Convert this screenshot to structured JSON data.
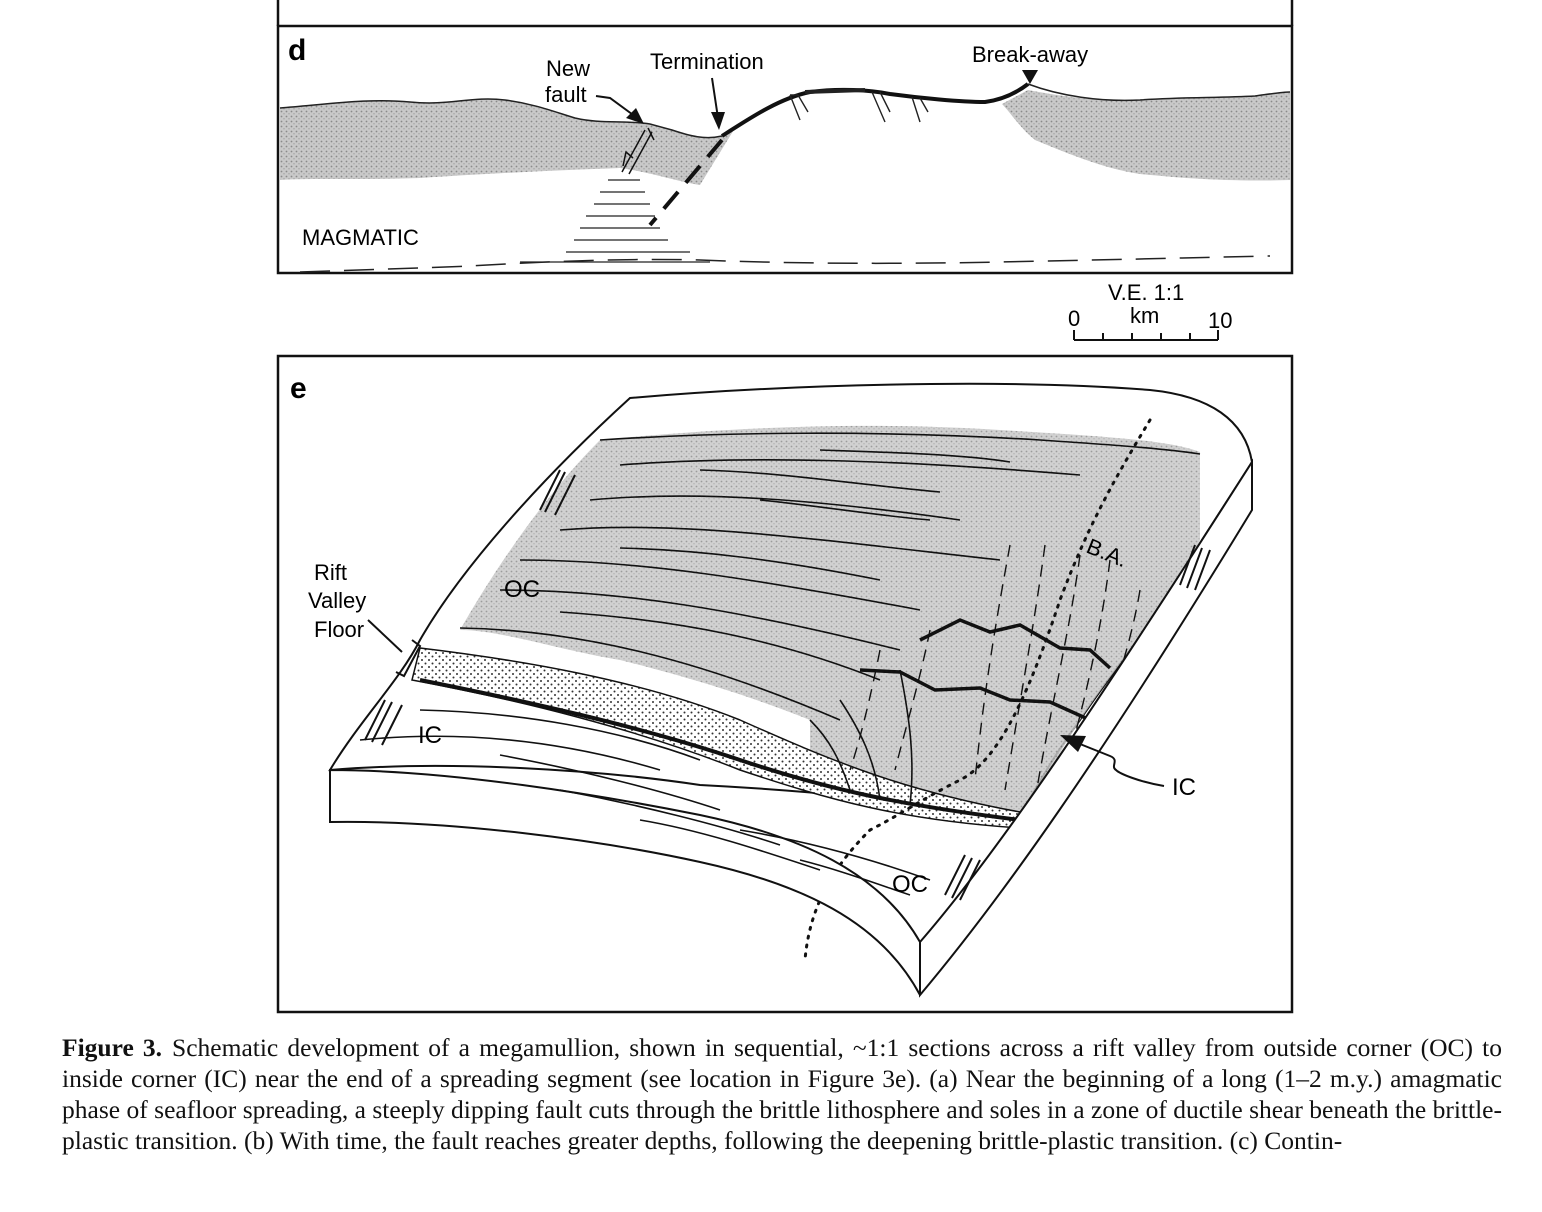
{
  "panel_d": {
    "letter": "d",
    "labels": {
      "new": "New",
      "fault": "fault",
      "termination": "Termination",
      "breakaway": "Break-away",
      "magmatic": "MAGMATIC"
    },
    "scale": {
      "ve": "V.E. 1:1",
      "zero": "0",
      "unit": "km",
      "ten": "10"
    }
  },
  "panel_e": {
    "letter": "e",
    "labels": {
      "rift": "Rift",
      "valley": "Valley",
      "floor": "Floor",
      "oc_upper": "OC",
      "oc_lower": "OC",
      "ic_left": "IC",
      "ic_right": "IC",
      "ba": "B.A."
    }
  },
  "caption": {
    "label": "Figure 3.",
    "text": "Schematic development of a megamullion, shown in sequential, ~1:1 sections across a rift valley from outside corner (OC) to inside corner (IC) near the end of a spreading segment (see location in Figure 3e). (a) Near the beginning of a long (1–2 m.y.) amagmatic phase of seafloor spreading, a steeply dipping fault cuts through the brittle lithosphere and soles in a zone of ductile shear beneath the brittle-plastic transition. (b) With time, the fault reaches greater depths, following the deepening brittle-plastic transition. (c) Contin-"
  }
}
